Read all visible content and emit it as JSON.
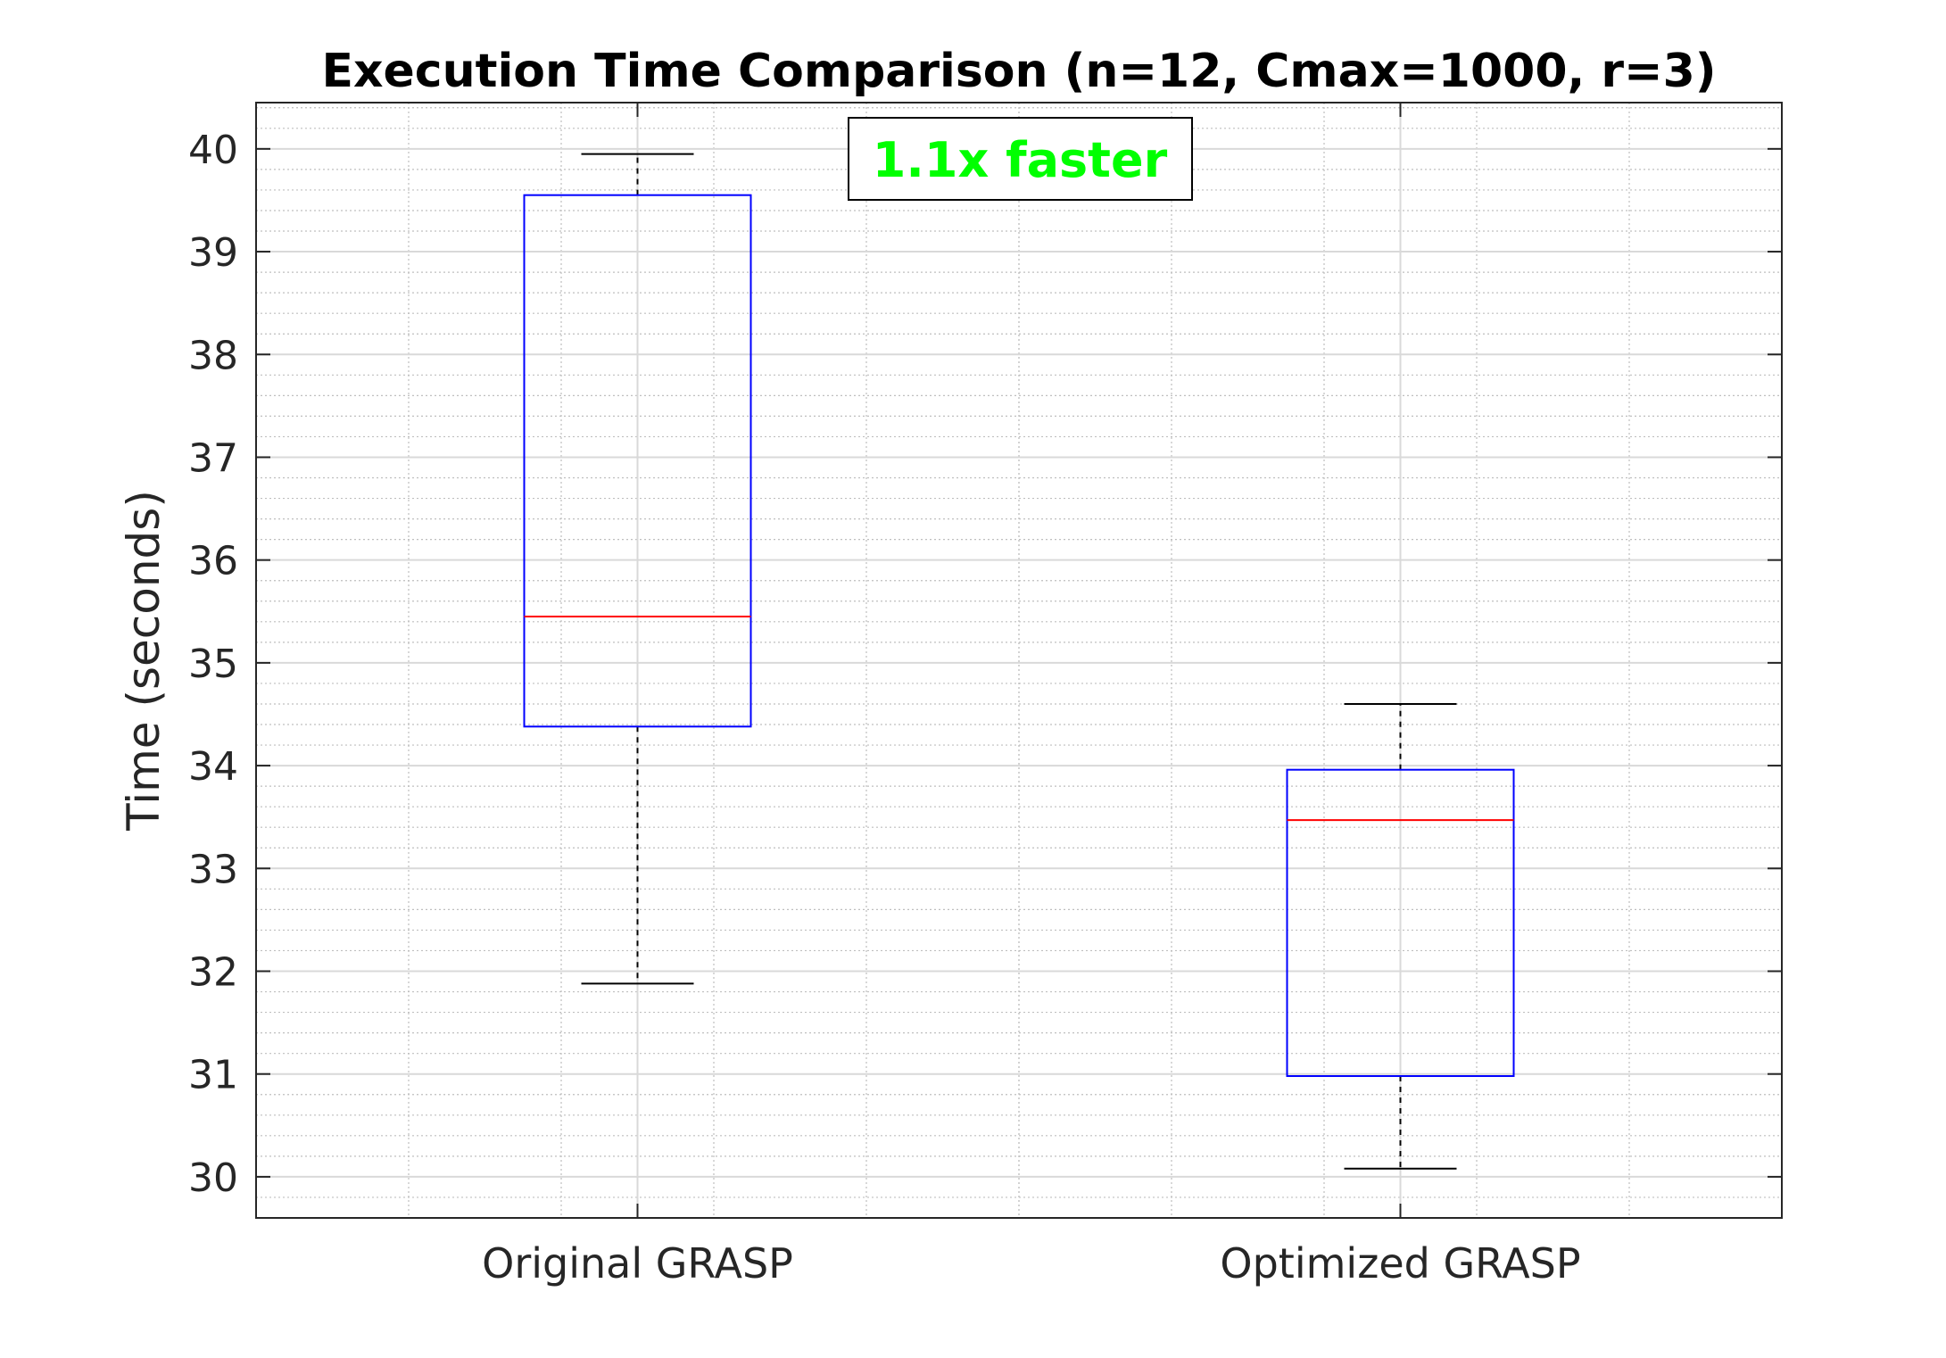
{
  "chart_data": {
    "type": "box",
    "title": "Execution Time Comparison (n=12, Cmax=1000, r=3)",
    "xlabel": "",
    "ylabel": "Time (seconds)",
    "ylim": [
      29.6,
      40.45
    ],
    "yticks": [
      30,
      31,
      32,
      33,
      34,
      35,
      36,
      37,
      38,
      39,
      40
    ],
    "ytick_labels": [
      "30",
      "31",
      "32",
      "33",
      "34",
      "35",
      "36",
      "37",
      "38",
      "39",
      "40"
    ],
    "grid": true,
    "minor_grid": true,
    "categories": [
      "Original GRASP",
      "Optimized GRASP"
    ],
    "boxes": [
      {
        "category": "Original GRASP",
        "whisker_low": 31.88,
        "q1": 34.38,
        "median": 35.45,
        "q3": 39.55,
        "whisker_high": 39.95
      },
      {
        "category": "Optimized GRASP",
        "whisker_low": 30.08,
        "q1": 30.98,
        "median": 33.47,
        "q3": 33.96,
        "whisker_high": 34.6
      }
    ],
    "annotation": {
      "text": "1.1x faster",
      "color": "#00ff00"
    },
    "colors": {
      "box": "#0000ff",
      "median": "#ff0000",
      "whisker": "#000000",
      "grid_major": "#d9d9d9",
      "grid_minor": "#bfbfbf"
    }
  }
}
